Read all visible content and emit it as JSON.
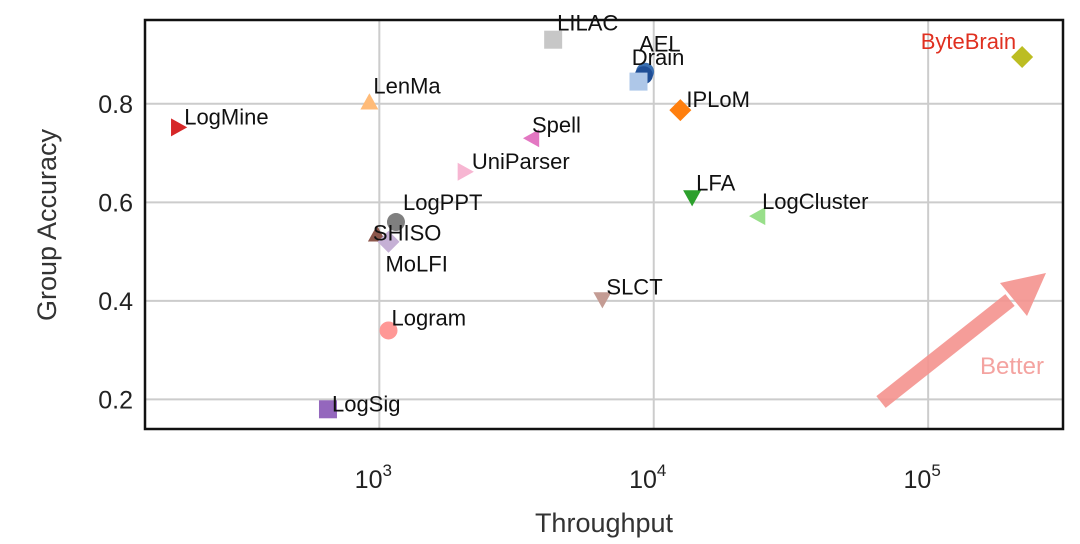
{
  "chart_data": {
    "type": "scatter",
    "xlabel": "Throughput",
    "ylabel": "Group Accuracy",
    "xscale": "log",
    "xlim": [
      140,
      310000
    ],
    "ylim": [
      0.14,
      0.97
    ],
    "grid": true,
    "x_ticks": [
      {
        "value": 1000,
        "base": "10",
        "exp": "3"
      },
      {
        "value": 10000,
        "base": "10",
        "exp": "4"
      },
      {
        "value": 100000,
        "base": "10",
        "exp": "5"
      }
    ],
    "y_ticks": [
      {
        "value": 0.2,
        "label": "0.2"
      },
      {
        "value": 0.4,
        "label": "0.4"
      },
      {
        "value": 0.6,
        "label": "0.6"
      },
      {
        "value": 0.8,
        "label": "0.8"
      }
    ],
    "annotation": {
      "text": "Better",
      "color": "#f4a3a0"
    },
    "points": [
      {
        "name": "LILAC",
        "x": 4300,
        "y": 0.93,
        "marker": "square",
        "color": "#c7c7c7",
        "label_color": "#111111"
      },
      {
        "name": "AEL",
        "x": 9300,
        "y": 0.865,
        "marker": "circle",
        "color": "#3a6fb0",
        "label_color": "#111111"
      },
      {
        "name": "Drain",
        "x": 9200,
        "y": 0.858,
        "marker": "circle",
        "color": "#1f4e96",
        "label_color": "#111111"
      },
      {
        "name": "",
        "x": 8800,
        "y": 0.845,
        "marker": "square",
        "color": "#aec7e8",
        "label_color": "#111111"
      },
      {
        "name": "IPLoM",
        "x": 12500,
        "y": 0.787,
        "marker": "diamond",
        "color": "#ff7f0e",
        "label_color": "#111111"
      },
      {
        "name": "ByteBrain",
        "x": 220000,
        "y": 0.895,
        "marker": "diamond",
        "color": "#bcbd22",
        "label_color": "#e03020"
      },
      {
        "name": "LogMine",
        "x": 185,
        "y": 0.752,
        "marker": "tri-right",
        "color": "#d62728",
        "label_color": "#111111"
      },
      {
        "name": "LenMa",
        "x": 920,
        "y": 0.803,
        "marker": "tri-up",
        "color": "#ffbb78",
        "label_color": "#111111"
      },
      {
        "name": "Spell",
        "x": 3600,
        "y": 0.73,
        "marker": "tri-left",
        "color": "#e377c2",
        "label_color": "#111111"
      },
      {
        "name": "UniParser",
        "x": 2050,
        "y": 0.662,
        "marker": "tri-right",
        "color": "#f7b6d2",
        "label_color": "#111111"
      },
      {
        "name": "LFA",
        "x": 13800,
        "y": 0.61,
        "marker": "tri-down",
        "color": "#2ca02c",
        "label_color": "#111111"
      },
      {
        "name": "LogCluster",
        "x": 24000,
        "y": 0.572,
        "marker": "tri-left",
        "color": "#98df8a",
        "label_color": "#111111"
      },
      {
        "name": "LogPPT",
        "x": 1150,
        "y": 0.56,
        "marker": "circle",
        "color": "#7f7f7f",
        "label_color": "#111111"
      },
      {
        "name": "SHISO",
        "x": 980,
        "y": 0.535,
        "marker": "tri-up",
        "color": "#8c564b",
        "label_color": "#111111"
      },
      {
        "name": "MoLFI",
        "x": 1080,
        "y": 0.52,
        "marker": "diamond",
        "color": "#c5b0d5",
        "label_color": "#111111"
      },
      {
        "name": "SLCT",
        "x": 6500,
        "y": 0.403,
        "marker": "tri-down",
        "color": "#c49c94",
        "label_color": "#111111"
      },
      {
        "name": "Logram",
        "x": 1080,
        "y": 0.34,
        "marker": "circle",
        "color": "#ff9896",
        "label_color": "#111111"
      },
      {
        "name": "LogSig",
        "x": 650,
        "y": 0.18,
        "marker": "square",
        "color": "#9467bd",
        "label_color": "#111111"
      }
    ]
  }
}
